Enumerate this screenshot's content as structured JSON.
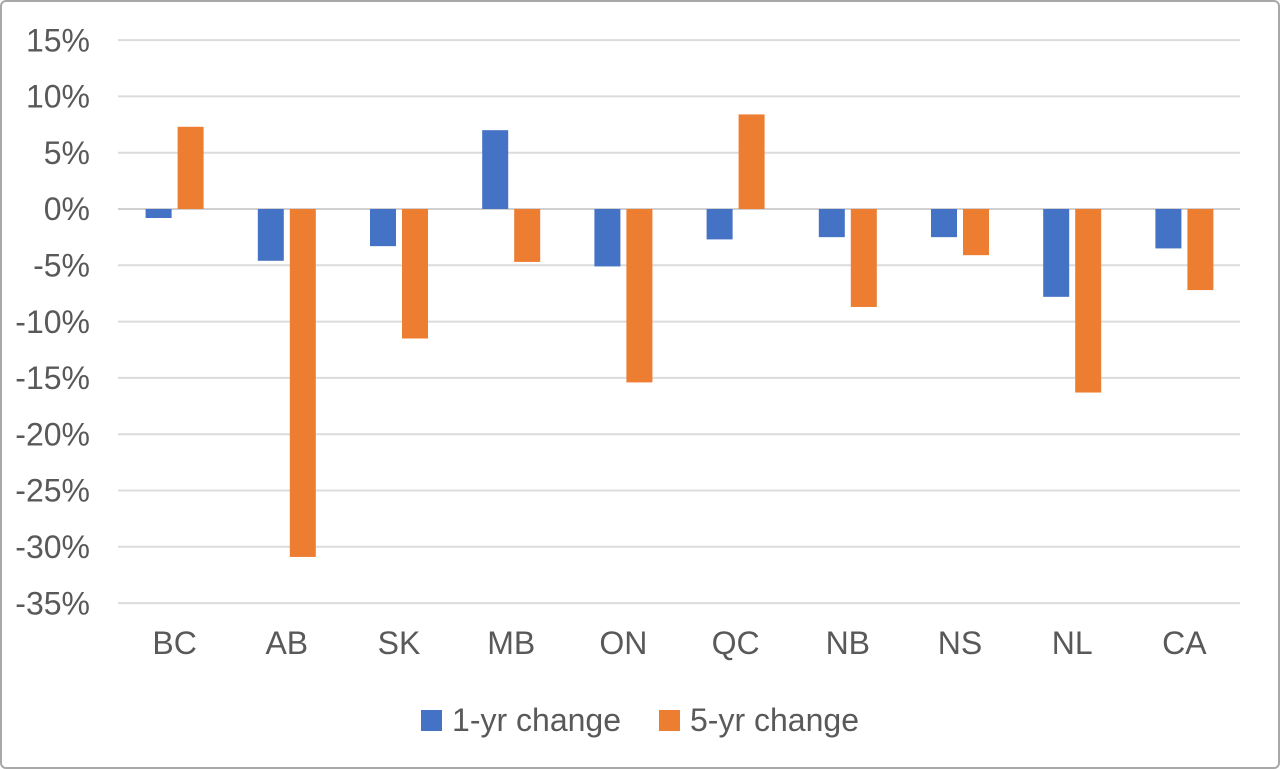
{
  "chart_data": {
    "type": "bar",
    "title": "",
    "categories": [
      "BC",
      "AB",
      "SK",
      "MB",
      "ON",
      "QC",
      "NB",
      "NS",
      "NL",
      "CA"
    ],
    "series": [
      {
        "name": "1-yr change",
        "color": "#4472C4",
        "values": [
          -0.8,
          -4.6,
          -3.3,
          7.0,
          -5.1,
          -2.7,
          -2.5,
          -2.5,
          -7.8,
          -3.5
        ]
      },
      {
        "name": "5-yr change",
        "color": "#ED7D31",
        "values": [
          7.3,
          -30.9,
          -11.5,
          -4.7,
          -15.4,
          8.4,
          -8.7,
          -4.1,
          -16.3,
          -7.2
        ]
      }
    ],
    "y_axis": {
      "unit": "%",
      "max": 15,
      "min": -35,
      "step": 5,
      "tick_labels": [
        "15%",
        "10%",
        "5%",
        "0%",
        "-5%",
        "-10%",
        "-15%",
        "-20%",
        "-25%",
        "-30%",
        "-35%"
      ]
    },
    "legend": {
      "position": "bottom",
      "entries": [
        "1-yr change",
        "5-yr change"
      ]
    },
    "grid": true
  },
  "colors": {
    "background": "#FFFFFF",
    "frame_border": "#A8A8A8",
    "gridline": "#DCDCDC",
    "zero_axis": "#D0D0D0",
    "axis_text": "#595959"
  }
}
